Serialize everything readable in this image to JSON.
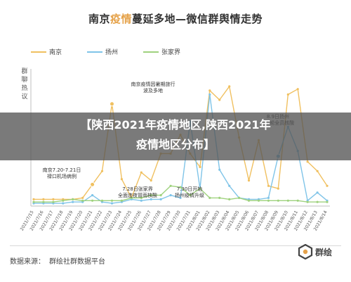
{
  "header": {
    "title_part1": "南京",
    "title_highlight": "疫情",
    "title_part2": "蔓延多地—微信群舆情走势"
  },
  "overlay": {
    "line1": "【陕西2021年疫情地区,陕西2021年",
    "line2": "疫情地区分布】"
  },
  "footer": {
    "source_label": "数据来源：",
    "source_text": "群绘社群数据平台",
    "brand_text": "群绘"
  },
  "colors": {
    "nanjing": "#f0c060",
    "yangzhou": "#7fc4e8",
    "zhangjiajie": "#9fd27e",
    "title_accent": "#e5a24a"
  },
  "chart_data": {
    "type": "line",
    "title": "南京疫情蔓延多地—微信群舆情走势",
    "ylabel": "群聊热议",
    "xlabel": "",
    "ylim": [
      0,
      100
    ],
    "grid": false,
    "legend": "top-left",
    "categories": [
      "2021/7/15",
      "2021/7/16",
      "2021/7/17",
      "2021/7/18",
      "2021/7/19",
      "2021/7/20",
      "2021/7/21",
      "2021/7/22",
      "2021/7/23",
      "2021/7/24",
      "2021/7/25",
      "2021/7/26",
      "2021/7/27",
      "2021/7/28",
      "2021/7/29",
      "2021/7/30",
      "2021/7/31",
      "2021/8/01",
      "2021/8/02",
      "2021/8/03",
      "2021/8/04",
      "2021/8/05",
      "2021/8/06",
      "2021/8/07",
      "2021/8/08",
      "2021/8/09",
      "2021/8/10",
      "2021/8/11",
      "2021/8/12",
      "2021/8/13",
      "2021/8/14"
    ],
    "series": [
      {
        "name": "南京",
        "values": [
          4,
          4,
          4,
          4,
          4,
          5,
          15,
          25,
          75,
          19,
          5,
          24,
          18,
          38,
          38,
          52,
          38,
          28,
          85,
          78,
          88,
          50,
          18,
          48,
          14,
          12,
          82,
          86,
          32,
          25,
          14
        ]
      },
      {
        "name": "扬州",
        "values": [
          1,
          1,
          1,
          1,
          2,
          2,
          7,
          2,
          1,
          2,
          4,
          3,
          4,
          4,
          7,
          5,
          62,
          12,
          82,
          26,
          14,
          5,
          4,
          4,
          5,
          36,
          58,
          40,
          3,
          9,
          3
        ]
      },
      {
        "name": "张家界",
        "values": [
          2,
          2,
          2,
          3,
          4,
          3,
          3,
          3,
          3,
          3,
          5,
          5,
          7,
          7,
          14,
          13,
          7,
          12,
          5,
          5,
          4,
          5,
          3,
          3,
          3,
          3,
          3,
          3,
          2,
          2,
          2
        ]
      }
    ],
    "annotations": [
      {
        "text_line1": "南京7.20-7.21日",
        "text_line2": "禄口机场病例",
        "category": "2021/7/21"
      },
      {
        "text_line1": "南京疫情因暑期旅行",
        "text_line2": "波及多地",
        "category": "2021/7/28"
      },
      {
        "text_line1": "7.28日张家界",
        "text_line2": "全面连夜冒雨核酸",
        "category": "2021/7/29"
      },
      {
        "text_line1": "7.30日开始",
        "text_line2": "扬州疫情升级",
        "category": "2021/7/31"
      },
      {
        "text_line1": "8.9日扬州",
        "text_line2": "第5轮全员核酸",
        "category": "2021/8/09"
      }
    ]
  }
}
